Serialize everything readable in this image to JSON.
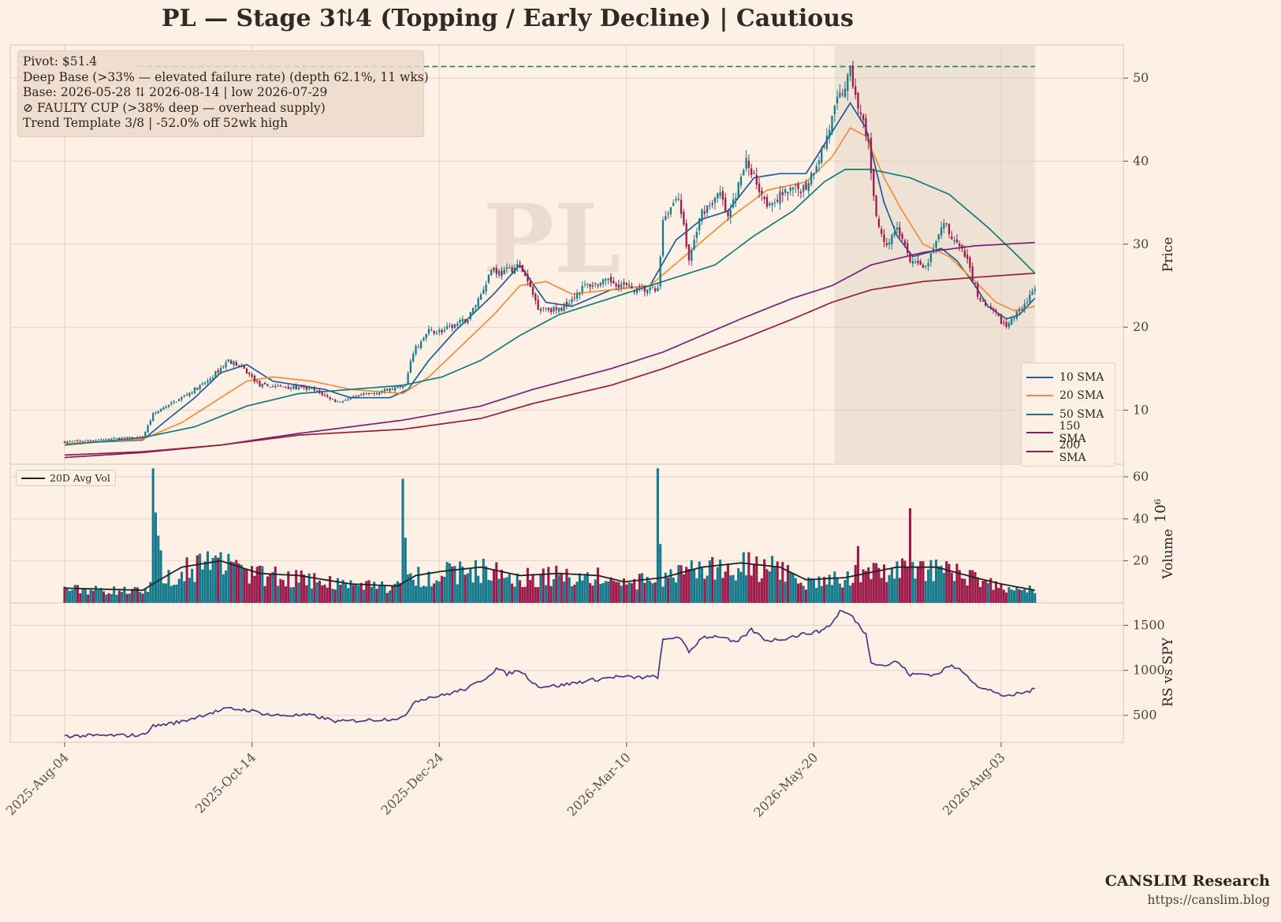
{
  "title": "PL  —  Stage 3⇅4 (Topping / Early Decline)  |  Cautious",
  "watermark": "PL",
  "info_lines": [
    "Pivot: $51.4",
    "Deep Base (>33% — elevated failure rate)  (depth 62.1%, 11 wks)",
    "Base: 2026-05-28 ⇅ 2026-08-14  |  low 2026-07-29",
    "⊘ FAULTY CUP (>38% deep — overhead supply)",
    "Trend Template 3/8  |  -52.0% off 52wk high"
  ],
  "legend": [
    {
      "label": "10 SMA",
      "color": "#1f5c99"
    },
    {
      "label": "20 SMA",
      "color": "#f28c38"
    },
    {
      "label": "50 SMA",
      "color": "#127a80"
    },
    {
      "label": "150 SMA",
      "color": "#7b1e7a"
    },
    {
      "label": "200 SMA",
      "color": "#9b1b3e"
    }
  ],
  "volume_legend": "20D Avg Vol",
  "brand": {
    "name": "CANSLIM Research",
    "url": "https://canslim.blog"
  },
  "colors": {
    "background": "#fdf1e6",
    "up": "#167a8c",
    "down": "#9b1b4a",
    "pivot": "#1b8a4a",
    "rs_line": "#4b3584",
    "shade": "#ede0d3"
  },
  "chart_data": [
    {
      "type": "candlestick",
      "panel": "price",
      "ylabel": "Price",
      "ylim": [
        3.5,
        54
      ],
      "yticks": [
        10,
        20,
        30,
        40,
        50
      ],
      "xlim": [
        0,
        376
      ],
      "x_tick_labels": [
        "2025-Aug-04",
        "2025-Oct-14",
        "2025-Dec-24",
        "2026-Mar-10",
        "2026-May-20",
        "2026-Aug-03"
      ],
      "x_tick_index": [
        0,
        72,
        144,
        216,
        288,
        360
      ],
      "pivot": 51.4,
      "base_shading": {
        "start_index": 296,
        "end_index": 373
      },
      "base_low_index": 360,
      "close_anchors": [
        [
          0,
          6.2
        ],
        [
          10,
          6.4
        ],
        [
          20,
          6.6
        ],
        [
          30,
          6.7
        ],
        [
          34,
          9.5
        ],
        [
          45,
          11.5
        ],
        [
          55,
          13.5
        ],
        [
          63,
          16.0
        ],
        [
          68,
          15.2
        ],
        [
          75,
          13.0
        ],
        [
          85,
          12.8
        ],
        [
          95,
          12.5
        ],
        [
          105,
          11.0
        ],
        [
          115,
          11.8
        ],
        [
          125,
          12.5
        ],
        [
          131,
          13.0
        ],
        [
          134,
          17.0
        ],
        [
          140,
          19.5
        ],
        [
          145,
          19.5
        ],
        [
          155,
          21.0
        ],
        [
          160,
          24.0
        ],
        [
          164,
          27.0
        ],
        [
          168,
          26.5
        ],
        [
          175,
          27.5
        ],
        [
          182,
          22.5
        ],
        [
          190,
          22.0
        ],
        [
          200,
          25.0
        ],
        [
          210,
          25.5
        ],
        [
          220,
          24.5
        ],
        [
          228,
          24.5
        ],
        [
          230,
          33.0
        ],
        [
          236,
          36.0
        ],
        [
          240,
          28.0
        ],
        [
          245,
          34.0
        ],
        [
          252,
          36.0
        ],
        [
          255,
          33.0
        ],
        [
          262,
          40.0
        ],
        [
          270,
          35.0
        ],
        [
          276,
          36.0
        ],
        [
          285,
          37.0
        ],
        [
          292,
          42.0
        ],
        [
          297,
          47.0
        ],
        [
          302,
          50.5
        ],
        [
          306,
          46.0
        ],
        [
          309,
          42.0
        ],
        [
          312,
          33.0
        ],
        [
          316,
          30.0
        ],
        [
          320,
          32.0
        ],
        [
          325,
          28.0
        ],
        [
          330,
          27.0
        ],
        [
          334,
          29.0
        ],
        [
          338,
          32.5
        ],
        [
          343,
          30.0
        ],
        [
          347,
          28.0
        ],
        [
          352,
          23.0
        ],
        [
          358,
          21.5
        ],
        [
          362,
          20.0
        ],
        [
          368,
          22.5
        ],
        [
          372,
          24.0
        ],
        [
          373,
          24.5
        ]
      ],
      "sma_anchors": {
        "10 SMA": [
          [
            0,
            6.0
          ],
          [
            30,
            6.4
          ],
          [
            40,
            9.0
          ],
          [
            50,
            11.5
          ],
          [
            60,
            14.5
          ],
          [
            70,
            15.5
          ],
          [
            80,
            13.5
          ],
          [
            100,
            12.5
          ],
          [
            110,
            11.5
          ],
          [
            125,
            11.5
          ],
          [
            132,
            12.5
          ],
          [
            140,
            16.0
          ],
          [
            150,
            19.5
          ],
          [
            165,
            24.0
          ],
          [
            175,
            27.5
          ],
          [
            185,
            23.0
          ],
          [
            195,
            22.5
          ],
          [
            210,
            24.5
          ],
          [
            225,
            25.0
          ],
          [
            235,
            30.5
          ],
          [
            245,
            33.0
          ],
          [
            255,
            34.0
          ],
          [
            265,
            38.0
          ],
          [
            275,
            38.5
          ],
          [
            285,
            38.5
          ],
          [
            295,
            43.5
          ],
          [
            302,
            47.0
          ],
          [
            308,
            44.0
          ],
          [
            315,
            35.0
          ],
          [
            320,
            31.0
          ],
          [
            326,
            28.5
          ],
          [
            332,
            29.0
          ],
          [
            337,
            29.5
          ],
          [
            343,
            28.0
          ],
          [
            350,
            25.0
          ],
          [
            355,
            22.5
          ],
          [
            362,
            21.0
          ],
          [
            367,
            21.5
          ],
          [
            373,
            23.5
          ]
        ],
        "20 SMA": [
          [
            0,
            6.0
          ],
          [
            30,
            6.5
          ],
          [
            45,
            8.5
          ],
          [
            60,
            11.5
          ],
          [
            70,
            13.5
          ],
          [
            80,
            14.0
          ],
          [
            95,
            13.5
          ],
          [
            110,
            12.5
          ],
          [
            130,
            12.0
          ],
          [
            140,
            14.0
          ],
          [
            150,
            17.0
          ],
          [
            165,
            21.5
          ],
          [
            175,
            25.0
          ],
          [
            185,
            25.5
          ],
          [
            195,
            24.0
          ],
          [
            210,
            24.5
          ],
          [
            225,
            25.0
          ],
          [
            240,
            29.0
          ],
          [
            255,
            33.0
          ],
          [
            270,
            36.5
          ],
          [
            285,
            37.5
          ],
          [
            295,
            40.5
          ],
          [
            302,
            44.0
          ],
          [
            308,
            43.0
          ],
          [
            315,
            38.0
          ],
          [
            322,
            34.0
          ],
          [
            330,
            30.0
          ],
          [
            340,
            28.5
          ],
          [
            350,
            25.5
          ],
          [
            358,
            23.0
          ],
          [
            365,
            22.0
          ],
          [
            373,
            22.5
          ]
        ],
        "50 SMA": [
          [
            0,
            5.8
          ],
          [
            30,
            6.7
          ],
          [
            50,
            8.0
          ],
          [
            70,
            10.5
          ],
          [
            90,
            12.0
          ],
          [
            110,
            12.5
          ],
          [
            130,
            13.0
          ],
          [
            145,
            14.0
          ],
          [
            160,
            16.0
          ],
          [
            175,
            19.0
          ],
          [
            190,
            21.5
          ],
          [
            205,
            23.0
          ],
          [
            220,
            24.5
          ],
          [
            235,
            26.0
          ],
          [
            250,
            27.5
          ],
          [
            265,
            31.0
          ],
          [
            280,
            34.0
          ],
          [
            292,
            37.5
          ],
          [
            300,
            39.0
          ],
          [
            310,
            39.0
          ],
          [
            325,
            38.0
          ],
          [
            340,
            36.0
          ],
          [
            355,
            32.0
          ],
          [
            365,
            29.0
          ],
          [
            373,
            26.5
          ]
        ],
        "150 SMA": [
          [
            0,
            4.6
          ],
          [
            30,
            5.0
          ],
          [
            60,
            5.8
          ],
          [
            90,
            7.2
          ],
          [
            130,
            8.8
          ],
          [
            160,
            10.5
          ],
          [
            180,
            12.5
          ],
          [
            210,
            15.0
          ],
          [
            230,
            17.0
          ],
          [
            260,
            21.0
          ],
          [
            280,
            23.5
          ],
          [
            295,
            25.0
          ],
          [
            310,
            27.5
          ],
          [
            330,
            29.0
          ],
          [
            350,
            29.8
          ],
          [
            373,
            30.2
          ]
        ],
        "200 SMA": [
          [
            0,
            4.3
          ],
          [
            30,
            4.9
          ],
          [
            60,
            5.8
          ],
          [
            90,
            7.0
          ],
          [
            130,
            7.7
          ],
          [
            160,
            9.0
          ],
          [
            180,
            10.8
          ],
          [
            210,
            13.0
          ],
          [
            230,
            15.0
          ],
          [
            260,
            18.5
          ],
          [
            280,
            21.0
          ],
          [
            295,
            23.0
          ],
          [
            310,
            24.5
          ],
          [
            330,
            25.5
          ],
          [
            350,
            26.0
          ],
          [
            373,
            26.5
          ]
        ]
      }
    },
    {
      "type": "bar",
      "panel": "volume",
      "ylabel": "Volume",
      "scale_label": "10⁶",
      "ylim": [
        0,
        66
      ],
      "yticks": [
        20,
        40,
        60
      ],
      "base_volume": 6,
      "spikes": [
        [
          34,
          64
        ],
        [
          35,
          43
        ],
        [
          36,
          32
        ],
        [
          37,
          25
        ],
        [
          130,
          59
        ],
        [
          131,
          31
        ],
        [
          228,
          64
        ],
        [
          229,
          28
        ],
        [
          304,
          18
        ],
        [
          305,
          27
        ],
        [
          325,
          45
        ],
        [
          280,
          14
        ],
        [
          275,
          11
        ]
      ],
      "avg_anchors": [
        [
          0,
          7
        ],
        [
          30,
          6
        ],
        [
          38,
          12
        ],
        [
          45,
          17
        ],
        [
          60,
          20
        ],
        [
          75,
          14
        ],
        [
          90,
          13
        ],
        [
          110,
          9
        ],
        [
          128,
          8
        ],
        [
          135,
          13
        ],
        [
          145,
          15
        ],
        [
          160,
          17
        ],
        [
          175,
          13
        ],
        [
          190,
          14
        ],
        [
          205,
          13
        ],
        [
          215,
          10
        ],
        [
          230,
          12
        ],
        [
          245,
          17
        ],
        [
          260,
          19
        ],
        [
          275,
          17
        ],
        [
          285,
          11
        ],
        [
          300,
          12
        ],
        [
          320,
          17
        ],
        [
          335,
          17
        ],
        [
          350,
          12
        ],
        [
          360,
          9
        ],
        [
          373,
          6
        ]
      ]
    },
    {
      "type": "line",
      "panel": "rs",
      "ylabel": "RS vs SPY",
      "ylim": [
        200,
        1750
      ],
      "yticks": [
        500,
        1000,
        1500
      ],
      "anchors": [
        [
          0,
          270
        ],
        [
          15,
          275
        ],
        [
          30,
          280
        ],
        [
          34,
          380
        ],
        [
          45,
          430
        ],
        [
          55,
          520
        ],
        [
          63,
          575
        ],
        [
          70,
          560
        ],
        [
          80,
          500
        ],
        [
          95,
          500
        ],
        [
          105,
          430
        ],
        [
          125,
          460
        ],
        [
          131,
          480
        ],
        [
          134,
          650
        ],
        [
          140,
          700
        ],
        [
          145,
          720
        ],
        [
          155,
          800
        ],
        [
          162,
          920
        ],
        [
          166,
          1020
        ],
        [
          170,
          960
        ],
        [
          175,
          1000
        ],
        [
          182,
          820
        ],
        [
          190,
          830
        ],
        [
          200,
          880
        ],
        [
          212,
          930
        ],
        [
          220,
          920
        ],
        [
          228,
          930
        ],
        [
          230,
          1330
        ],
        [
          236,
          1380
        ],
        [
          240,
          1200
        ],
        [
          245,
          1370
        ],
        [
          252,
          1380
        ],
        [
          258,
          1300
        ],
        [
          264,
          1450
        ],
        [
          270,
          1330
        ],
        [
          276,
          1350
        ],
        [
          285,
          1410
        ],
        [
          290,
          1430
        ],
        [
          295,
          1520
        ],
        [
          298,
          1660
        ],
        [
          302,
          1620
        ],
        [
          306,
          1480
        ],
        [
          308,
          1400
        ],
        [
          310,
          1100
        ],
        [
          315,
          1050
        ],
        [
          320,
          1100
        ],
        [
          325,
          950
        ],
        [
          330,
          960
        ],
        [
          335,
          950
        ],
        [
          340,
          1050
        ],
        [
          345,
          1000
        ],
        [
          352,
          800
        ],
        [
          358,
          760
        ],
        [
          362,
          700
        ],
        [
          366,
          740
        ],
        [
          370,
          760
        ],
        [
          373,
          790
        ]
      ]
    }
  ]
}
